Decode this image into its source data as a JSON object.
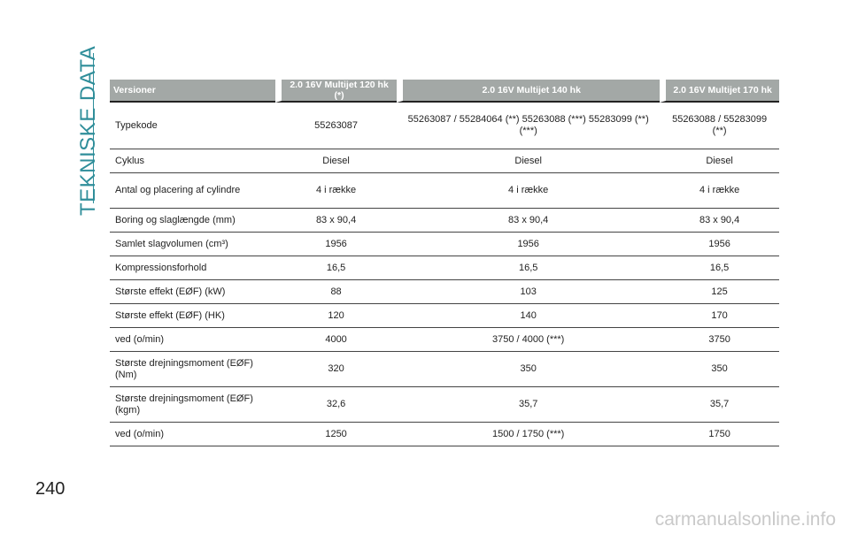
{
  "header": {
    "title": "TEKNISKE DATA"
  },
  "page_number": "240",
  "table": {
    "columns": [
      "Versioner",
      "2.0 16V Multijet 120 hk (*)",
      "2.0 16V Multijet 140 hk",
      "2.0 16V Multijet 170 hk"
    ],
    "rows": [
      [
        "Typekode",
        "55263087",
        "55263087 / 55284064 (**) 55263088 (***) 55283099 (**) (***)",
        "55263088 / 55283099 (**)"
      ],
      [
        "Cyklus",
        "Diesel",
        "Diesel",
        "Diesel"
      ],
      [
        "Antal og placering af cylindre",
        "4 i række",
        "4 i række",
        "4 i række"
      ],
      [
        "Boring og slaglængde (mm)",
        "83 x 90,4",
        "83 x 90,4",
        "83 x 90,4"
      ],
      [
        "Samlet slagvolumen (cm³)",
        "1956",
        "1956",
        "1956"
      ],
      [
        "Kompressionsforhold",
        "16,5",
        "16,5",
        "16,5"
      ],
      [
        "Største effekt (EØF) (kW)",
        "88",
        "103",
        "125"
      ],
      [
        "Største effekt (EØF) (HK)",
        "120",
        "140",
        "170"
      ],
      [
        "ved (o/min)",
        "4000",
        "3750 / 4000 (***)",
        "3750"
      ],
      [
        "Største drejningsmoment (EØF) (Nm)",
        "320",
        "350",
        "350"
      ],
      [
        "Største drejningsmoment (EØF) (kgm)",
        "32,6",
        "35,7",
        "35,7"
      ],
      [
        "ved (o/min)",
        "1250",
        "1500 / 1750 (***)",
        "1750"
      ]
    ]
  },
  "watermark": "carmanualsonline.info"
}
